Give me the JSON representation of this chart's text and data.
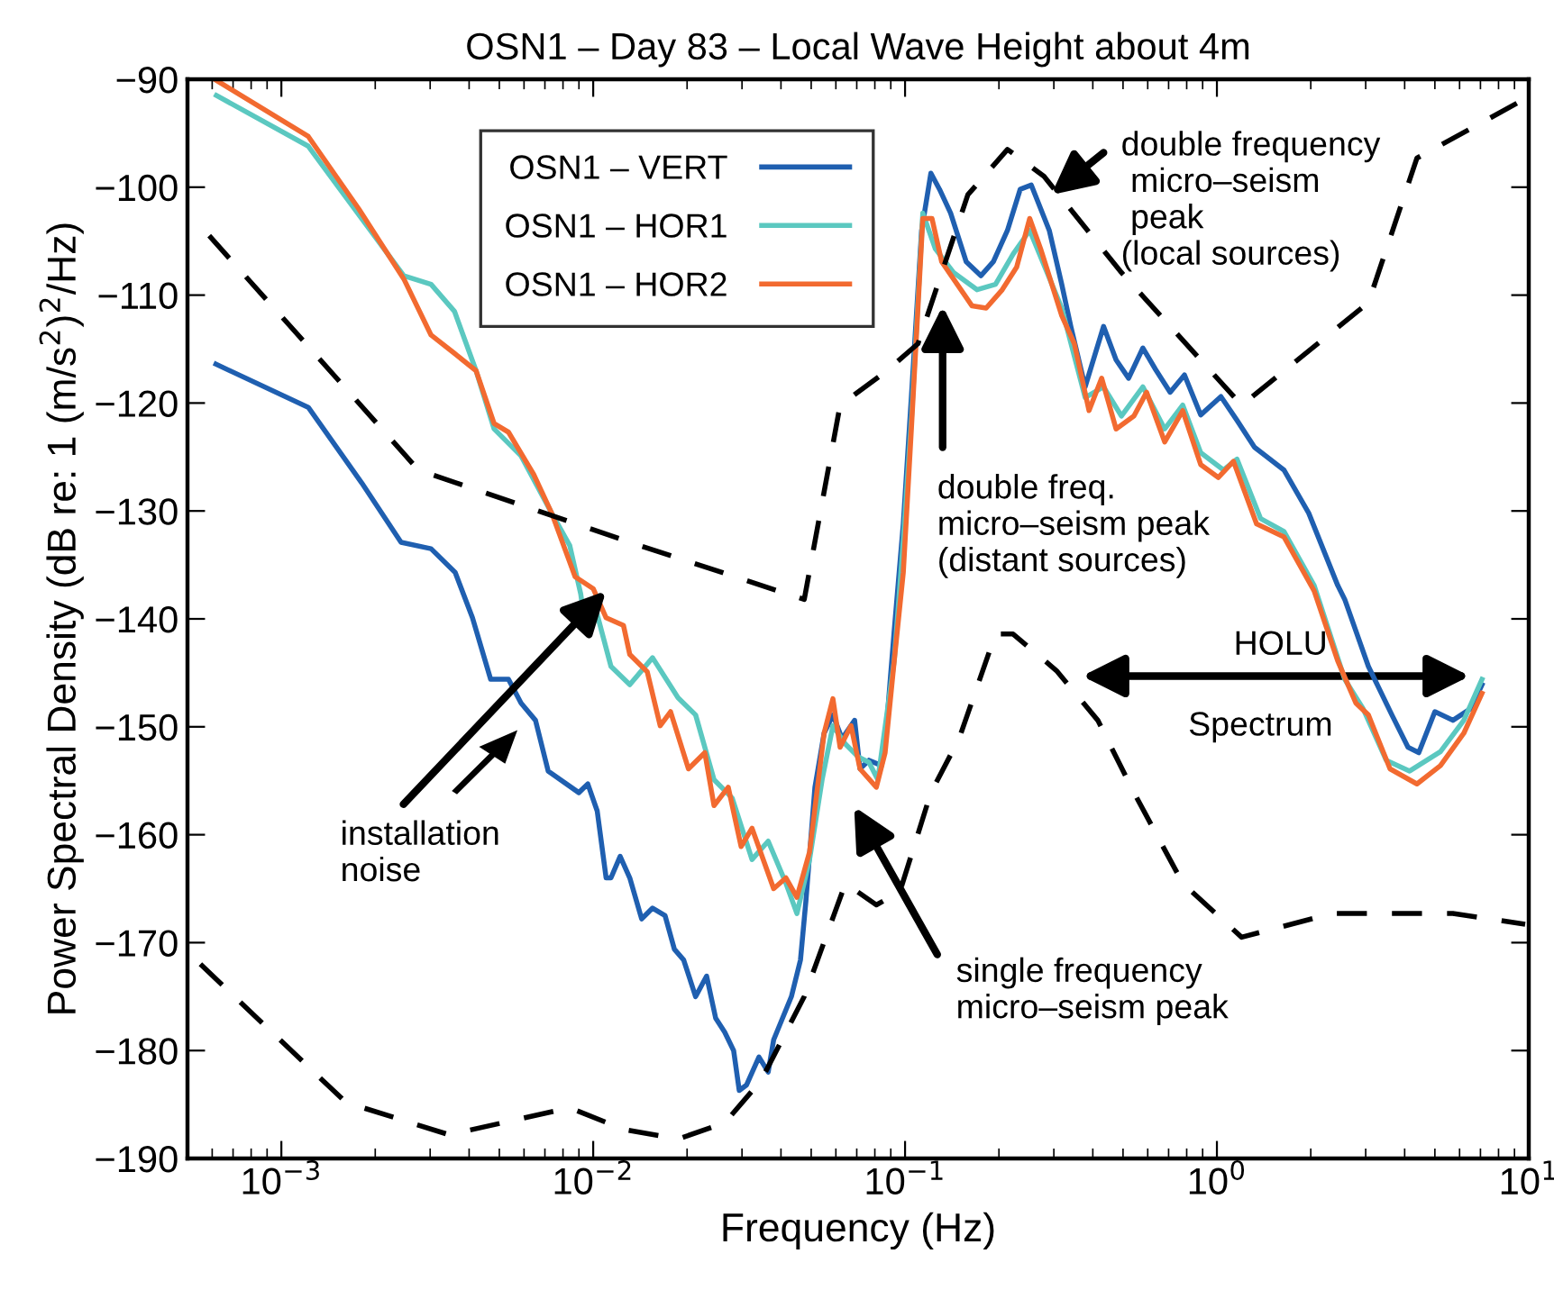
{
  "chart_data": {
    "type": "line",
    "title": "OSN1 – Day 83 – Local Wave Height about 4m",
    "xlabel": "Frequency (Hz)",
    "ylabel": "Power Spectral Density (dB re: 1 (m/s$^{2}$)$^{2}$/Hz)",
    "log": "x",
    "xlim": [
      0.0005,
      10
    ],
    "ylim": [
      -190,
      -90
    ],
    "xticks": [
      {
        "value": 0.001,
        "label": "10$^{−3}$"
      },
      {
        "value": 0.01,
        "label": "10$^{−2}$"
      },
      {
        "value": 0.1,
        "label": "10$^{−1}$"
      },
      {
        "value": 1,
        "label": "10$^{0}$"
      },
      {
        "value": 10,
        "label": "10$^{1}$"
      }
    ],
    "yticks": [
      -190,
      -180,
      -170,
      -160,
      -150,
      -140,
      -130,
      -120,
      -110,
      -100,
      -90
    ],
    "grid": false,
    "legend": "top",
    "marker": "none",
    "series": [
      {
        "name": "OSN1 – VERT",
        "color": "#1f5fb0",
        "line_style": "solid",
        "x": [
          0.000617,
          0.00122,
          0.00181,
          0.00242,
          0.00302,
          0.00361,
          0.0041,
          0.00469,
          0.00535,
          0.00587,
          0.00653,
          0.00717,
          0.00899,
          0.00961,
          0.0103,
          0.011,
          0.0114,
          0.0122,
          0.0131,
          0.0143,
          0.0155,
          0.017,
          0.0182,
          0.0195,
          0.0213,
          0.0231,
          0.0247,
          0.0264,
          0.0282,
          0.0294,
          0.031,
          0.034,
          0.0364,
          0.0379,
          0.0432,
          0.0462,
          0.0481,
          0.0514,
          0.055,
          0.0587,
          0.0628,
          0.0689,
          0.0717,
          0.0766,
          0.0841,
          0.0875,
          0.0923,
          0.0987,
          0.105,
          0.113,
          0.121,
          0.129,
          0.14,
          0.157,
          0.175,
          0.192,
          0.213,
          0.234,
          0.254,
          0.29,
          0.318,
          0.34,
          0.378,
          0.433,
          0.475,
          0.521,
          0.579,
          0.636,
          0.708,
          0.787,
          0.887,
          1.03,
          1.16,
          1.32,
          1.64,
          1.97,
          2.44,
          2.57,
          3.06,
          3.64,
          4.1,
          4.44,
          5.0,
          5.71,
          6.53,
          7.08
        ],
        "values": [
          -116.4,
          -120.4,
          -127.4,
          -132.9,
          -133.5,
          -135.7,
          -139.9,
          -145.6,
          -145.6,
          -147.8,
          -149.4,
          -154.1,
          -156.1,
          -155.3,
          -157.8,
          -164.0,
          -164.0,
          -162.0,
          -164.0,
          -167.8,
          -166.8,
          -167.5,
          -170.6,
          -171.6,
          -175.0,
          -173.1,
          -177.0,
          -178.3,
          -180.0,
          -183.7,
          -183.2,
          -180.6,
          -182.0,
          -179.0,
          -175.0,
          -171.6,
          -166.1,
          -155.6,
          -150.6,
          -148.9,
          -151.1,
          -149.4,
          -153.9,
          -153.1,
          -153.6,
          -149.4,
          -141.1,
          -131.2,
          -119.0,
          -104.0,
          -98.7,
          -100.2,
          -102.4,
          -106.9,
          -108.2,
          -106.9,
          -104.0,
          -100.2,
          -99.8,
          -104.0,
          -109.0,
          -112.9,
          -118.5,
          -112.9,
          -116.0,
          -117.7,
          -114.9,
          -116.9,
          -119.0,
          -117.4,
          -121.1,
          -119.4,
          -121.6,
          -124.1,
          -126.2,
          -130.2,
          -136.9,
          -138.2,
          -144.4,
          -148.9,
          -151.9,
          -152.4,
          -148.6,
          -149.4,
          -148.3,
          -146.1
        ]
      },
      {
        "name": "OSN1 – HOR1",
        "color": "#5bc8c0",
        "line_style": "solid",
        "x": [
          0.000619,
          0.00122,
          0.00247,
          0.00302,
          0.00359,
          0.00421,
          0.00481,
          0.00587,
          0.00736,
          0.00841,
          0.00912,
          0.00935,
          0.01,
          0.0114,
          0.0131,
          0.0155,
          0.0187,
          0.0213,
          0.0244,
          0.0279,
          0.0323,
          0.0364,
          0.0415,
          0.045,
          0.0494,
          0.0542,
          0.0587,
          0.0644,
          0.0708,
          0.0766,
          0.0818,
          0.0923,
          0.0987,
          0.105,
          0.114,
          0.125,
          0.143,
          0.17,
          0.195,
          0.222,
          0.251,
          0.318,
          0.378,
          0.433,
          0.494,
          0.579,
          0.68,
          0.777,
          0.887,
          1.05,
          1.16,
          1.38,
          1.64,
          2.05,
          2.57,
          2.94,
          3.49,
          4.15,
          5.21,
          6.19,
          7.08
        ],
        "values": [
          -91.5,
          -96.2,
          -108.2,
          -109.0,
          -111.5,
          -117.0,
          -122.4,
          -124.9,
          -130.2,
          -133.2,
          -137.7,
          -139.9,
          -138.2,
          -144.4,
          -146.1,
          -143.6,
          -147.3,
          -148.9,
          -154.9,
          -156.6,
          -162.3,
          -160.6,
          -164.5,
          -167.3,
          -162.3,
          -154.9,
          -149.9,
          -151.6,
          -152.8,
          -153.3,
          -154.9,
          -143.9,
          -132.7,
          -121.1,
          -102.4,
          -105.7,
          -107.9,
          -109.5,
          -109.0,
          -106.2,
          -104.0,
          -111.2,
          -119.5,
          -118.5,
          -121.2,
          -118.5,
          -122.4,
          -120.2,
          -124.6,
          -126.2,
          -125.2,
          -130.7,
          -131.9,
          -136.9,
          -145.6,
          -148.3,
          -153.1,
          -154.1,
          -152.3,
          -149.4,
          -145.6
        ]
      },
      {
        "name": "OSN1 – HOR2",
        "color": "#f26a30",
        "line_style": "solid",
        "x": [
          0.000611,
          0.00122,
          0.00177,
          0.00247,
          0.00302,
          0.00359,
          0.00421,
          0.00481,
          0.00535,
          0.00644,
          0.00736,
          0.00875,
          0.01,
          0.011,
          0.0125,
          0.0131,
          0.0149,
          0.0164,
          0.0177,
          0.0202,
          0.0228,
          0.0244,
          0.0271,
          0.0298,
          0.0323,
          0.0379,
          0.0415,
          0.045,
          0.0494,
          0.055,
          0.0587,
          0.0619,
          0.0671,
          0.0717,
          0.0809,
          0.0863,
          0.0923,
          0.0987,
          0.105,
          0.114,
          0.122,
          0.131,
          0.143,
          0.164,
          0.182,
          0.205,
          0.228,
          0.251,
          0.272,
          0.318,
          0.349,
          0.389,
          0.427,
          0.475,
          0.542,
          0.595,
          0.68,
          0.777,
          0.887,
          1.01,
          1.13,
          1.34,
          1.64,
          2.05,
          2.44,
          2.79,
          3.06,
          3.59,
          4.38,
          5.21,
          6.19,
          7.08
        ],
        "values": [
          -90.0,
          -95.3,
          -102.0,
          -108.5,
          -113.7,
          -115.4,
          -117.0,
          -121.9,
          -122.7,
          -126.6,
          -130.2,
          -136.1,
          -137.2,
          -139.9,
          -140.6,
          -143.3,
          -144.9,
          -149.9,
          -148.6,
          -153.9,
          -152.4,
          -157.3,
          -155.6,
          -161.1,
          -159.4,
          -165.0,
          -164.0,
          -165.8,
          -161.6,
          -150.6,
          -147.4,
          -151.9,
          -149.9,
          -153.9,
          -155.6,
          -152.4,
          -143.9,
          -135.7,
          -121.9,
          -102.9,
          -102.9,
          -106.9,
          -108.5,
          -111.0,
          -111.2,
          -109.5,
          -107.4,
          -102.9,
          -105.7,
          -111.9,
          -114.5,
          -120.7,
          -117.7,
          -122.4,
          -121.2,
          -119.0,
          -123.6,
          -120.7,
          -125.7,
          -126.9,
          -125.4,
          -131.2,
          -132.4,
          -137.4,
          -143.9,
          -147.8,
          -148.9,
          -153.9,
          -155.3,
          -153.6,
          -150.6,
          -146.9
        ]
      },
      {
        "color": "#000000",
        "line_style": "dashed",
        "x": [
          0.000587,
          0.00119,
          0.00275,
          0.0131,
          0.0475,
          0.0619,
          0.0875,
          0.11,
          0.159,
          0.213,
          0.279,
          0.494,
          1.2,
          3.06,
          4.38,
          9.74
        ],
        "values": [
          -104.5,
          -114.4,
          -126.2,
          -132.9,
          -138.2,
          -120.2,
          -117.0,
          -114.5,
          -100.7,
          -96.5,
          -99.0,
          -107.9,
          -120.2,
          -110.7,
          -97.3,
          -91.8
        ]
      },
      {
        "color": "#000000",
        "line_style": "dashed",
        "x": [
          0.00055,
          0.00161,
          0.00345,
          0.00841,
          0.0125,
          0.0187,
          0.0264,
          0.0345,
          0.0475,
          0.0644,
          0.0809,
          0.0962,
          0.121,
          0.149,
          0.195,
          0.222,
          0.306,
          0.415,
          0.542,
          0.777,
          1.2,
          2.34,
          5.71,
          9.74
        ],
        "values": [
          -172.0,
          -184.8,
          -187.8,
          -185.3,
          -187.3,
          -188.2,
          -186.7,
          -182.8,
          -175.0,
          -164.5,
          -166.5,
          -165.3,
          -156.1,
          -151.1,
          -141.4,
          -141.4,
          -144.8,
          -149.4,
          -156.1,
          -164.5,
          -169.5,
          -167.3,
          -167.3,
          -168.3
        ]
      }
    ],
    "annotations": [
      {
        "text": "installation\nnoise",
        "x": 0.011,
        "y": -137.4
      },
      "double freq.\nmicro–seism peak\n(distant sources)",
      "double frequency\n micro–seism\n peak\n(local sources)",
      "single frequency\nmicro–seism peak",
      "HOLU",
      "Spectrum"
    ]
  }
}
